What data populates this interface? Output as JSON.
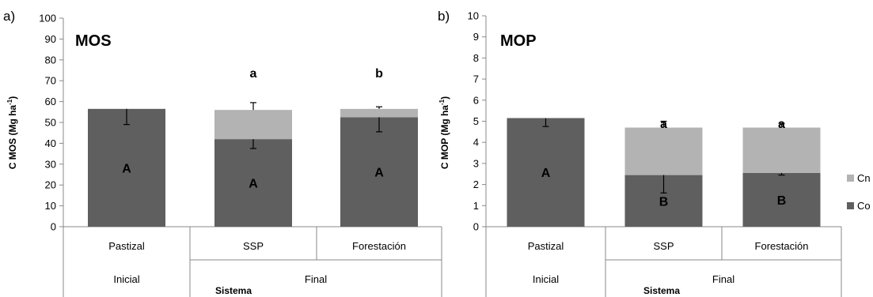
{
  "chart_data": [
    {
      "type": "bar",
      "stacked": true,
      "panel_label": "a)",
      "title": "MOS",
      "xlabel": "Sistema",
      "ylabel": "C MOS (Mg ha",
      "ylabel_sup": "-1",
      "ylabel_close": ")",
      "ylim": [
        0,
        100
      ],
      "ytick_step": 10,
      "yticks": [
        "0",
        "10",
        "20",
        "30",
        "40",
        "50",
        "60",
        "70",
        "80",
        "90",
        "100"
      ],
      "categories": [
        "Pastizal",
        "SSP",
        "Forestación"
      ],
      "groups": [
        {
          "label": "Inicial",
          "span": [
            0,
            0
          ]
        },
        {
          "label": "Final",
          "span": [
            1,
            2
          ]
        }
      ],
      "series": [
        {
          "name": "Co",
          "color": "#5f5f5f",
          "values": [
            56.5,
            42,
            52.5
          ]
        },
        {
          "name": "Cn",
          "color": "#b3b3b3",
          "values": [
            0,
            14,
            4
          ]
        }
      ],
      "errors": [
        {
          "series": "Co",
          "bar": 0,
          "low": 49
        },
        {
          "series": "Co",
          "bar": 1,
          "low": 37.5
        },
        {
          "series": "Co",
          "bar": 2,
          "low": 45.5
        },
        {
          "series": "Cn",
          "bar": 1,
          "high": 59.5
        },
        {
          "series": "Cn",
          "bar": 2,
          "high": 57.5
        }
      ],
      "bar_labels": [
        "A",
        "A",
        "A"
      ],
      "top_labels": [
        "",
        "a",
        "b"
      ],
      "grid": false
    },
    {
      "type": "bar",
      "stacked": true,
      "panel_label": "b)",
      "title": "MOP",
      "xlabel": "Sistema",
      "ylabel": "C MOP (Mg ha",
      "ylabel_sup": "-1",
      "ylabel_close": ")",
      "ylim": [
        0,
        10
      ],
      "ytick_step": 1,
      "yticks": [
        "0",
        "1",
        "2",
        "3",
        "4",
        "5",
        "6",
        "7",
        "8",
        "9",
        "10"
      ],
      "categories": [
        "Pastizal",
        "SSP",
        "Forestación"
      ],
      "groups": [
        {
          "label": "Inicial",
          "span": [
            0,
            0
          ]
        },
        {
          "label": "Final",
          "span": [
            1,
            2
          ]
        }
      ],
      "series": [
        {
          "name": "Co",
          "color": "#5f5f5f",
          "values": [
            5.15,
            2.45,
            2.55
          ]
        },
        {
          "name": "Cn",
          "color": "#b3b3b3",
          "values": [
            0,
            2.25,
            2.15
          ]
        }
      ],
      "errors": [
        {
          "series": "Co",
          "bar": 0,
          "low": 4.75
        },
        {
          "series": "Co",
          "bar": 1,
          "low": 1.6
        },
        {
          "series": "Co",
          "bar": 2,
          "low": 2.45
        },
        {
          "series": "Cn",
          "bar": 1,
          "high": 5.0
        },
        {
          "series": "Cn",
          "bar": 2,
          "high": 4.9
        }
      ],
      "bar_labels": [
        "A",
        "B",
        "B"
      ],
      "top_labels": [
        "",
        "a",
        "a"
      ],
      "grid": false
    }
  ],
  "legend": {
    "placement": "right",
    "items": [
      {
        "name": "Cn",
        "color": "#b3b3b3"
      },
      {
        "name": "Co",
        "color": "#5f5f5f"
      }
    ]
  }
}
